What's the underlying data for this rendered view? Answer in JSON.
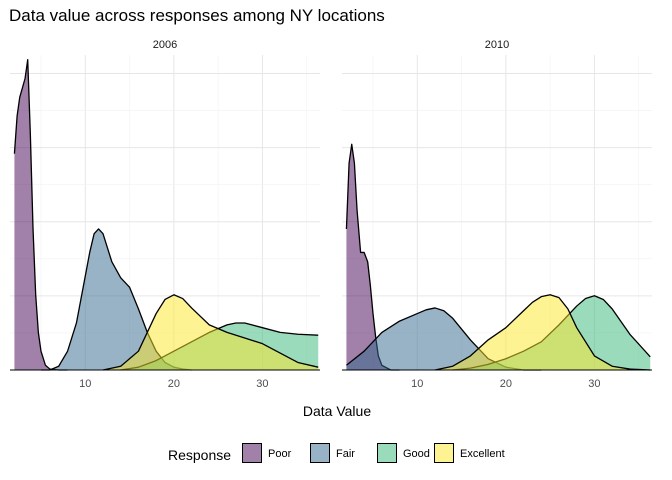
{
  "chart_data": {
    "type": "area",
    "subtype": "density",
    "title": "Data value across responses among NY locations",
    "xlabel": "Data Value",
    "ylabel": "",
    "legend_title": "Response",
    "legend_position": "bottom",
    "grid": true,
    "xlim": [
      1.5,
      36.5
    ],
    "ylim": [
      0,
      0.335
    ],
    "x_ticks": [
      10,
      20,
      30
    ],
    "y_axis_labels_shown": false,
    "series_styles": [
      {
        "name": "Poor",
        "color": "#440154",
        "opacity": 0.5
      },
      {
        "name": "Fair",
        "color": "#31688E",
        "opacity": 0.5
      },
      {
        "name": "Good",
        "color": "#35B779",
        "opacity": 0.5
      },
      {
        "name": "Excellent",
        "color": "#FDE725",
        "opacity": 0.5
      }
    ],
    "panels": [
      {
        "label": "2006",
        "series": [
          {
            "name": "Poor",
            "x": [
              2.0,
              2.3,
              2.6,
              2.9,
              3.2,
              3.5,
              3.8,
              4.1,
              4.4,
              4.7,
              5.0,
              5.5,
              6.0,
              7.0,
              8.0
            ],
            "values": [
              0.23,
              0.27,
              0.29,
              0.3,
              0.31,
              0.33,
              0.25,
              0.15,
              0.08,
              0.04,
              0.02,
              0.005,
              0.001,
              0.0,
              0.0
            ]
          },
          {
            "name": "Fair",
            "x": [
              5.0,
              6.0,
              7.0,
              8.0,
              9.0,
              10.0,
              10.5,
              11.0,
              11.5,
              12.0,
              12.5,
              13.0,
              14.0,
              15.0,
              16.0,
              17.0,
              18.0,
              19.0,
              20.0,
              21.0,
              22.0
            ],
            "values": [
              0.0,
              0.0,
              0.004,
              0.02,
              0.05,
              0.1,
              0.125,
              0.145,
              0.15,
              0.145,
              0.13,
              0.115,
              0.098,
              0.088,
              0.065,
              0.04,
              0.02,
              0.008,
              0.003,
              0.001,
              0.0
            ]
          },
          {
            "name": "Good",
            "x": [
              14.0,
              16.0,
              18.0,
              20.0,
              22.0,
              24.0,
              26.0,
              27.0,
              28.0,
              30.0,
              32.0,
              34.0,
              36.3
            ],
            "values": [
              0.0,
              0.003,
              0.01,
              0.02,
              0.03,
              0.04,
              0.048,
              0.05,
              0.05,
              0.045,
              0.04,
              0.038,
              0.037
            ]
          },
          {
            "name": "Excellent",
            "x": [
              12.0,
              14.0,
              16.0,
              18.0,
              19.0,
              20.0,
              21.0,
              22.0,
              24.0,
              26.0,
              28.0,
              30.0,
              32.0,
              34.0,
              36.3
            ],
            "values": [
              0.0,
              0.004,
              0.02,
              0.06,
              0.075,
              0.08,
              0.076,
              0.066,
              0.048,
              0.04,
              0.034,
              0.028,
              0.018,
              0.008,
              0.003
            ]
          }
        ]
      },
      {
        "label": "2010",
        "series": [
          {
            "name": "Poor",
            "x": [
              2.0,
              2.3,
              2.6,
              2.9,
              3.2,
              3.6,
              4.0,
              4.4,
              4.7,
              5.0,
              5.3,
              5.6,
              6.0,
              7.0,
              8.0
            ],
            "values": [
              0.15,
              0.22,
              0.24,
              0.22,
              0.17,
              0.125,
              0.125,
              0.115,
              0.09,
              0.06,
              0.035,
              0.015,
              0.005,
              0.0,
              0.0
            ]
          },
          {
            "name": "Fair",
            "x": [
              2.0,
              4.0,
              6.0,
              8.0,
              10.0,
              11.0,
              12.0,
              13.0,
              14.0,
              16.0,
              18.0,
              20.0,
              22.0,
              24.0
            ],
            "values": [
              0.005,
              0.02,
              0.04,
              0.052,
              0.06,
              0.064,
              0.066,
              0.063,
              0.055,
              0.032,
              0.012,
              0.003,
              0.0,
              0.0
            ]
          },
          {
            "name": "Good",
            "x": [
              14.0,
              16.0,
              18.0,
              20.0,
              22.0,
              24.0,
              26.0,
              28.0,
              29.0,
              30.0,
              31.0,
              32.0,
              34.0,
              36.3
            ],
            "values": [
              0.0,
              0.002,
              0.006,
              0.012,
              0.02,
              0.03,
              0.048,
              0.068,
              0.076,
              0.079,
              0.075,
              0.065,
              0.038,
              0.014
            ]
          },
          {
            "name": "Excellent",
            "x": [
              12.0,
              14.0,
              16.0,
              18.0,
              20.0,
              22.0,
              23.0,
              24.0,
              25.0,
              26.0,
              27.0,
              28.0,
              30.0,
              32.0,
              34.0,
              36.3
            ],
            "values": [
              0.0,
              0.004,
              0.015,
              0.032,
              0.045,
              0.063,
              0.072,
              0.078,
              0.08,
              0.077,
              0.065,
              0.045,
              0.015,
              0.004,
              0.001,
              0.0
            ]
          }
        ]
      }
    ]
  }
}
